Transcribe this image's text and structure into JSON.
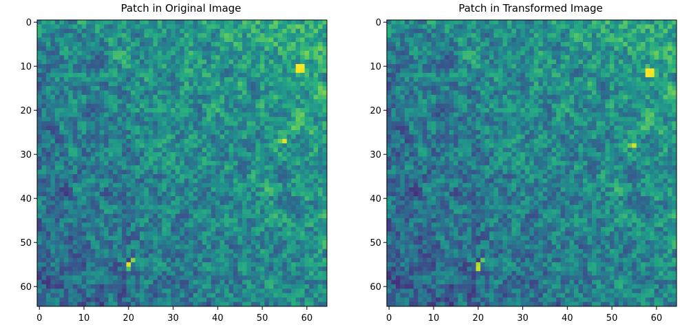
{
  "chart_data": [
    {
      "type": "heatmap",
      "title": "Patch in Original Image",
      "colormap": "viridis",
      "grid_size": [
        65,
        65
      ],
      "xlim": [
        -0.5,
        64.5
      ],
      "ylim": [
        64.5,
        -0.5
      ],
      "xticks": [
        0,
        10,
        20,
        30,
        40,
        50,
        60
      ],
      "yticks": [
        0,
        10,
        20,
        30,
        40,
        50,
        60
      ],
      "grid": false,
      "value_range": [
        0,
        1
      ],
      "background_level": 0.42,
      "gradient": {
        "from": [
          0,
          64
        ],
        "to": [
          64,
          0
        ],
        "low": 0.32,
        "high": 0.62
      },
      "noise_amplitude": 0.26,
      "hotspots": [
        {
          "x": 58,
          "y": 10,
          "value": 1.0
        },
        {
          "x": 59,
          "y": 10,
          "value": 1.0
        },
        {
          "x": 58,
          "y": 11,
          "value": 1.0
        },
        {
          "x": 59,
          "y": 11,
          "value": 0.97
        },
        {
          "x": 55,
          "y": 27,
          "value": 0.95
        },
        {
          "x": 54,
          "y": 27,
          "value": 0.78
        },
        {
          "x": 20,
          "y": 55,
          "value": 0.95
        },
        {
          "x": 21,
          "y": 54,
          "value": 0.82
        },
        {
          "x": 20,
          "y": 56,
          "value": 0.7
        }
      ],
      "seed": 7
    },
    {
      "type": "heatmap",
      "title": "Patch in Transformed Image",
      "colormap": "viridis",
      "grid_size": [
        65,
        65
      ],
      "xlim": [
        -0.5,
        64.5
      ],
      "ylim": [
        64.5,
        -0.5
      ],
      "xticks": [
        0,
        10,
        20,
        30,
        40,
        50,
        60
      ],
      "yticks": [
        0,
        10,
        20,
        30,
        40,
        50,
        60
      ],
      "grid": false,
      "value_range": [
        0,
        1
      ],
      "background_level": 0.4,
      "gradient": {
        "from": [
          0,
          64
        ],
        "to": [
          64,
          0
        ],
        "low": 0.3,
        "high": 0.6
      },
      "noise_amplitude": 0.26,
      "hotspots": [
        {
          "x": 58,
          "y": 11,
          "value": 1.0
        },
        {
          "x": 59,
          "y": 11,
          "value": 1.0
        },
        {
          "x": 58,
          "y": 12,
          "value": 1.0
        },
        {
          "x": 59,
          "y": 12,
          "value": 0.97
        },
        {
          "x": 55,
          "y": 28,
          "value": 0.93
        },
        {
          "x": 54,
          "y": 28,
          "value": 0.78
        },
        {
          "x": 20,
          "y": 55,
          "value": 0.88
        },
        {
          "x": 20,
          "y": 56,
          "value": 0.92
        },
        {
          "x": 21,
          "y": 54,
          "value": 0.75
        }
      ],
      "seed": 7
    }
  ]
}
